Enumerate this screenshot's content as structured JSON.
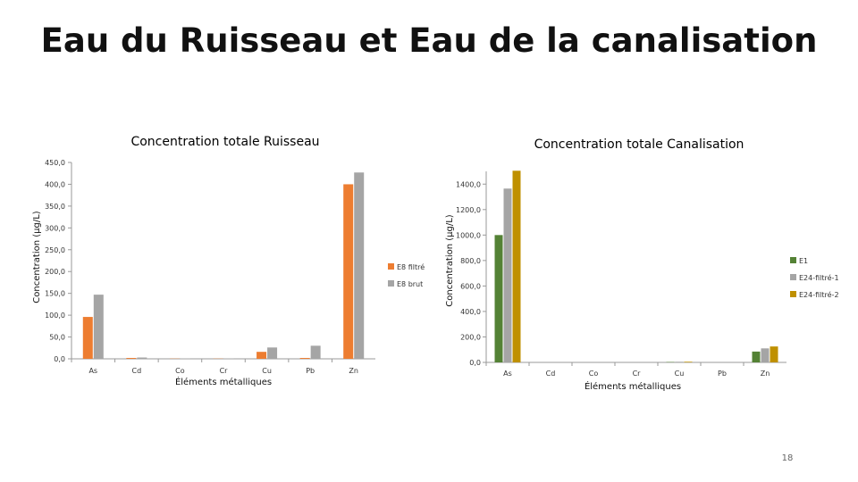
{
  "slide": {
    "title": "Eau du Ruisseau et Eau de la canalisation",
    "page_number": "18"
  },
  "chart_data": [
    {
      "type": "bar",
      "title": "Concentration totale Ruisseau",
      "xlabel": "Éléments métalliques",
      "ylabel": "Concentration (µg/L)",
      "categories": [
        "As",
        "Cd",
        "Co",
        "Cr",
        "Cu",
        "Pb",
        "Zn"
      ],
      "ylim": [
        0,
        450
      ],
      "yticks": [
        "0,0",
        "50,0",
        "100,0",
        "150,0",
        "200,0",
        "250,0",
        "300,0",
        "350,0",
        "400,0",
        "450,0"
      ],
      "legend_position": "right",
      "series": [
        {
          "name": "E8 filtré",
          "color": "#ED7D31",
          "values": [
            96,
            2,
            0.5,
            0.5,
            16,
            2,
            400
          ]
        },
        {
          "name": "E8 brut",
          "color": "#A5A5A5",
          "values": [
            147,
            3,
            1,
            1,
            26,
            30,
            427
          ]
        }
      ]
    },
    {
      "type": "bar",
      "title": "Concentration totale Canalisation",
      "xlabel": "Éléments métalliques",
      "ylabel": "Concentration (µg/L)",
      "categories": [
        "As",
        "Cd",
        "Co",
        "Cr",
        "Cu",
        "Pb",
        "Zn"
      ],
      "ylim": [
        0,
        1500
      ],
      "yticks": [
        "0,0",
        "200,0",
        "400,0",
        "600,0",
        "800,0",
        "1000,0",
        "1200,0",
        "1400,0"
      ],
      "legend_position": "right",
      "series": [
        {
          "name": "E1",
          "color": "#548235",
          "values": [
            1000,
            0,
            0,
            0,
            3,
            0,
            85
          ]
        },
        {
          "name": "E24-filtré-1",
          "color": "#A5A5A5",
          "values": [
            1365,
            0,
            0,
            0,
            5,
            0,
            110
          ]
        },
        {
          "name": "E24-filtré-2",
          "color": "#BF9000",
          "values": [
            1505,
            0,
            0,
            0,
            5,
            0,
            125
          ]
        }
      ]
    }
  ]
}
